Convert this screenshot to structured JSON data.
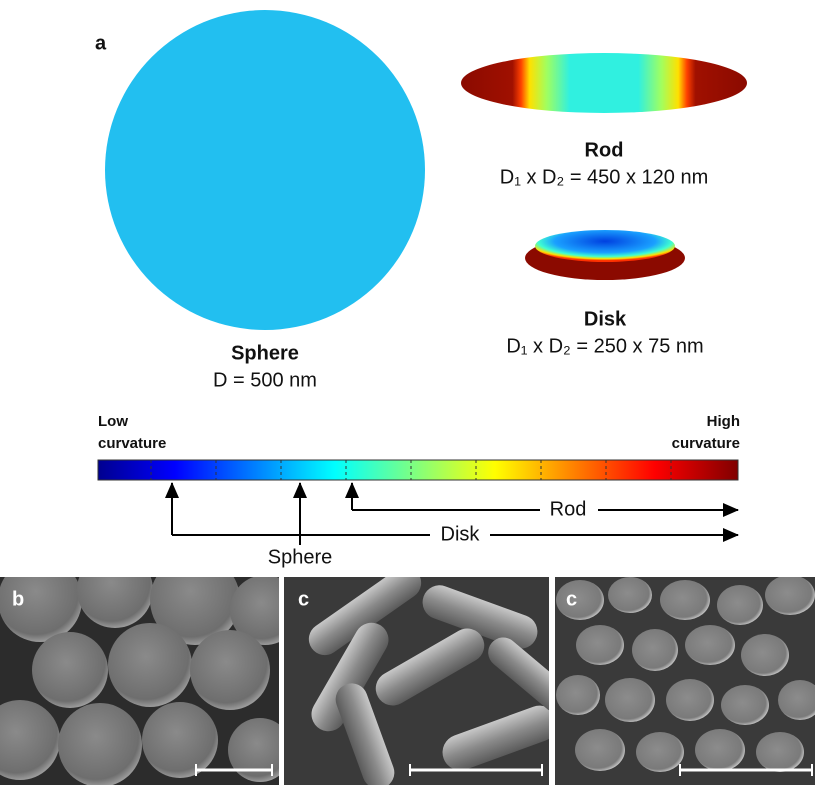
{
  "panel_a": {
    "label": "a",
    "sphere": {
      "name": "Sphere",
      "dims": "D = 500 nm"
    },
    "rod": {
      "name": "Rod",
      "dims": "D₁ x D₂ = 450 x 120 nm"
    },
    "disk": {
      "name": "Disk",
      "dims": "D₁ x D₂ = 250 x 75 nm"
    },
    "scale": {
      "low": [
        "Low",
        "curvature"
      ],
      "high": [
        "High",
        "curvature"
      ]
    },
    "arrows": {
      "rod": "Rod",
      "disk": "Disk",
      "sphere": "Sphere"
    }
  },
  "panels": [
    {
      "label": "b"
    },
    {
      "label": "c"
    },
    {
      "label": "c"
    }
  ]
}
